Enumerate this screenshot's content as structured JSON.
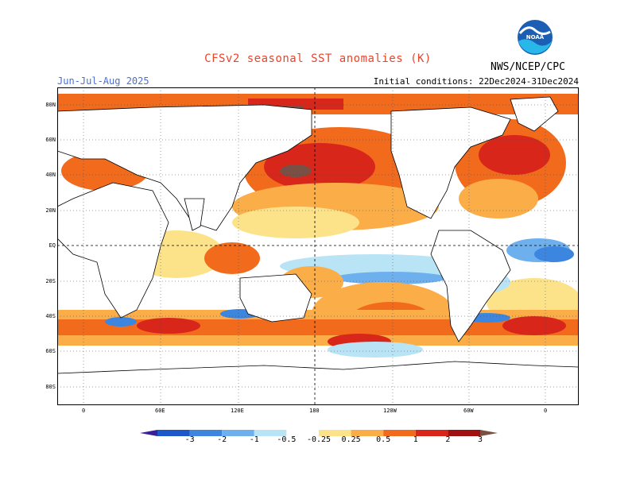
{
  "header": {
    "title": "CFSv2 seasonal SST anomalies (K)",
    "period": "Jun-Jul-Aug 2025",
    "initial_conditions": "Initial conditions: 22Dec2024-31Dec2024",
    "credit": "NWS/NCEP/CPC",
    "logo_text": "NOAA"
  },
  "axes": {
    "lat_labels": [
      "80N",
      "60N",
      "40N",
      "20N",
      "EQ",
      "20S",
      "40S",
      "60S",
      "80S"
    ],
    "lon_labels": [
      "0",
      "60E",
      "120E",
      "180",
      "120W",
      "60W",
      "0"
    ]
  },
  "colorbar": {
    "labels": [
      "-3",
      "-2",
      "-1",
      "-0.5",
      "-0.25",
      "0.25",
      "0.5",
      "1",
      "2",
      "3"
    ],
    "colors": [
      "#3a1f9a",
      "#1d58c8",
      "#3c86e0",
      "#6eb0ee",
      "#b8e4f6",
      "#ffffff",
      "#fce38a",
      "#fbad48",
      "#f26a1b",
      "#d8261a",
      "#9f1010",
      "#7a5044"
    ]
  },
  "colors": {
    "title": "#e8452a",
    "period": "#4a6fd8",
    "land": "#ffffff",
    "coast": "#000000"
  }
}
